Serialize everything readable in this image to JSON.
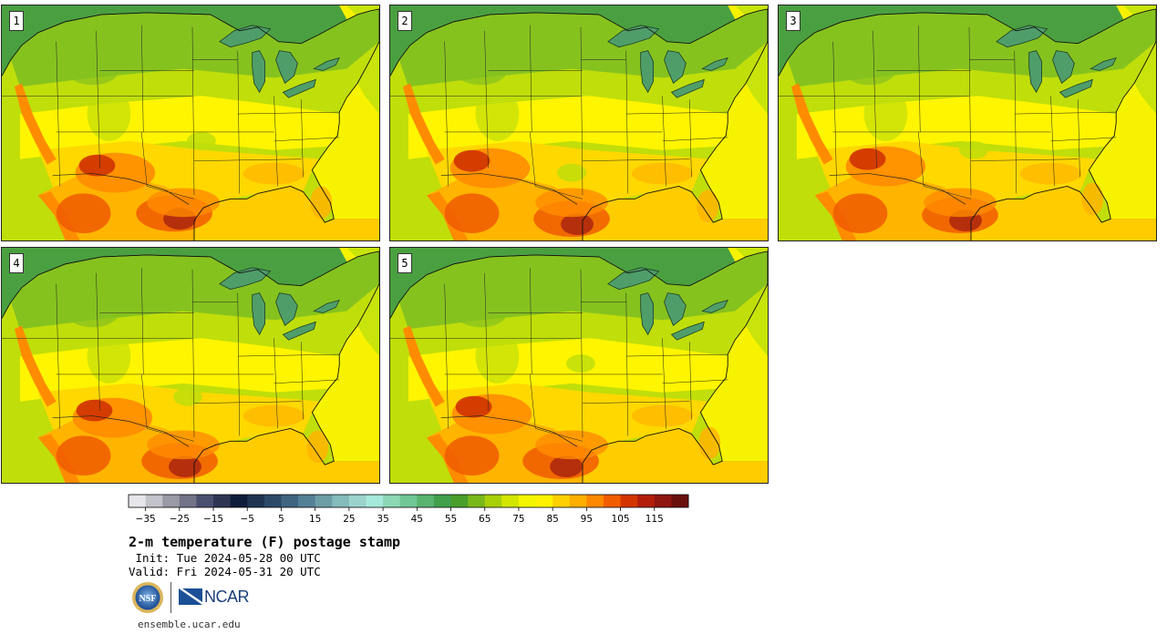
{
  "panels": [
    {
      "label": "1"
    },
    {
      "label": "2"
    },
    {
      "label": "3"
    },
    {
      "label": "4"
    },
    {
      "label": "5"
    }
  ],
  "colorbar": {
    "colors": [
      "#e6e6ea",
      "#c3c3cb",
      "#9a9aa7",
      "#727288",
      "#4a5070",
      "#2e3552",
      "#0e1e3a",
      "#1e3552",
      "#2d4a68",
      "#3f6480",
      "#538095",
      "#6c9ea6",
      "#84bbbb",
      "#9cd3cc",
      "#a6e8da",
      "#8cd8b4",
      "#70c896",
      "#58b46e",
      "#41a04c",
      "#4a9e2a",
      "#79b81a",
      "#a8d008",
      "#d2e600",
      "#f3f600",
      "#fff200",
      "#ffd000",
      "#ffaf00",
      "#ff8800",
      "#f25c00",
      "#d43500",
      "#b21e0a",
      "#8f1610",
      "#6a100c"
    ],
    "ticks": [
      "−35",
      "−25",
      "−15",
      "−5",
      "5",
      "15",
      "25",
      "35",
      "45",
      "55",
      "65",
      "75",
      "85",
      "95",
      "105",
      "115"
    ]
  },
  "title": "2-m temperature (F) postage stamp",
  "init_line": " Init: Tue 2024-05-28 00 UTC",
  "valid_line": "Valid: Fri 2024-05-31 20 UTC",
  "logos": {
    "nsf": "NSF",
    "ncar": "NCAR"
  },
  "url": "ensemble.ucar.edu"
}
